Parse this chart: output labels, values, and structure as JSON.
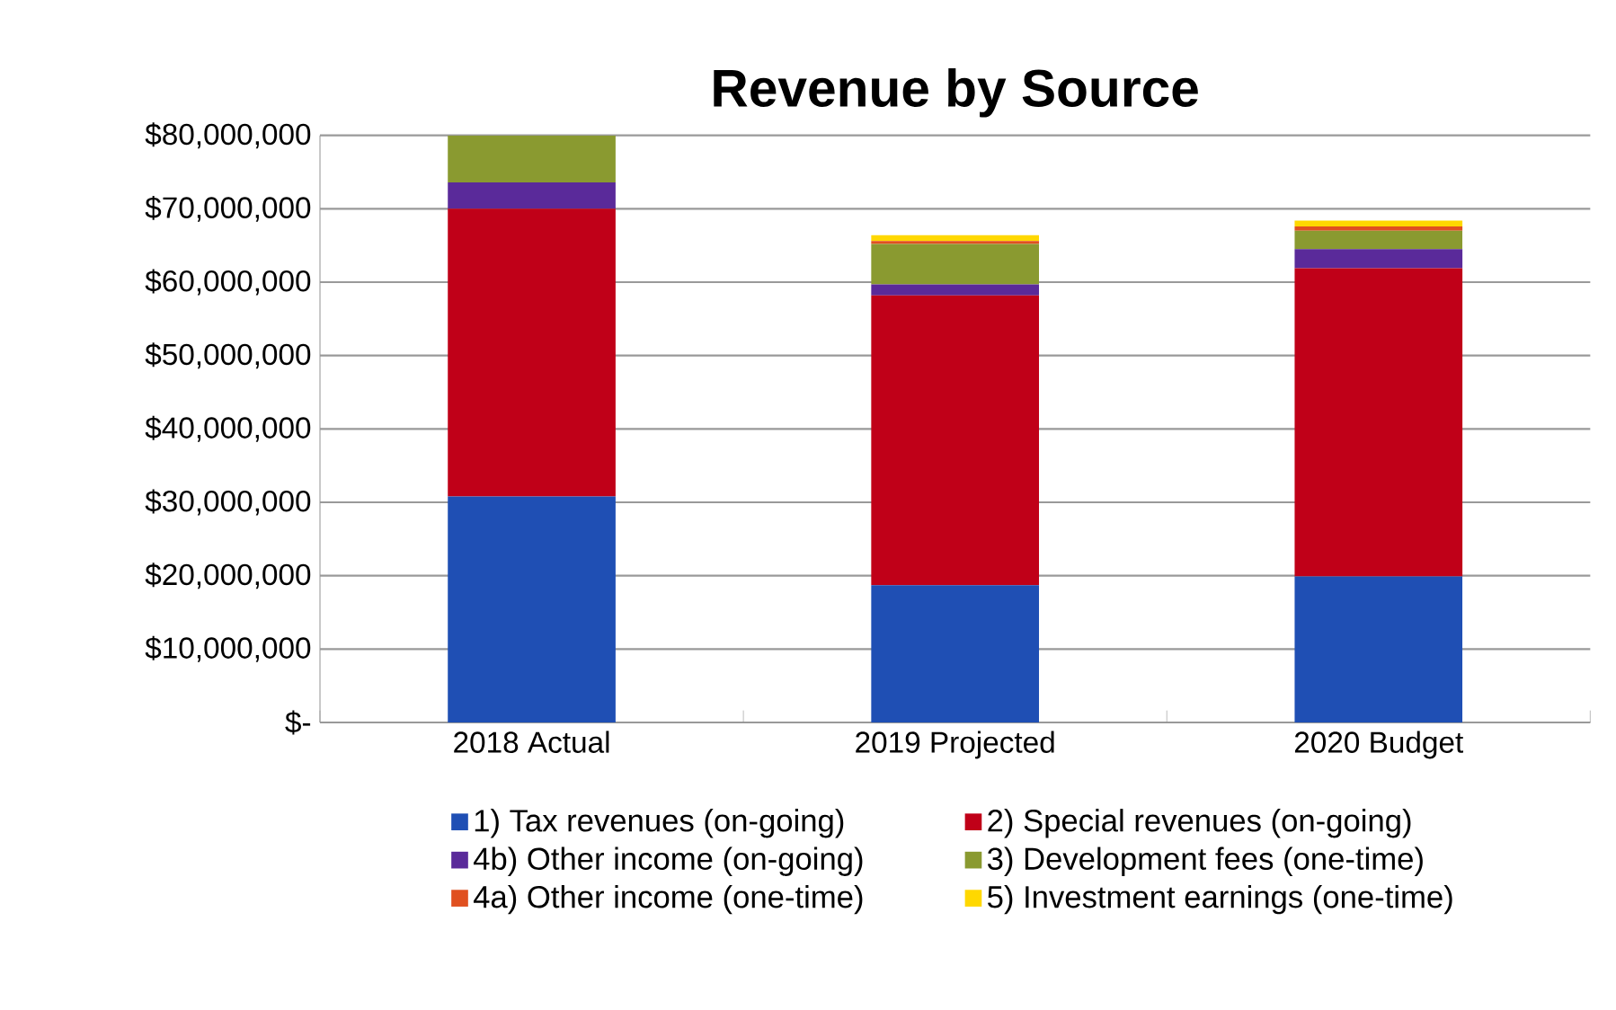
{
  "chart_data": {
    "type": "bar",
    "title": "Revenue by Source",
    "stacked": true,
    "categories": [
      "2018 Actual",
      "2019 Projected",
      "2020 Budget"
    ],
    "series": [
      {
        "name": "1) Tax revenues  (on-going)",
        "color": "#1f4fb4",
        "values": [
          30800000,
          18700000,
          19900000
        ]
      },
      {
        "name": "2) Special revenues (on-going)",
        "color": "#c00018",
        "values": [
          39200000,
          39500000,
          42000000
        ]
      },
      {
        "name": "4b) Other income (on-going)",
        "color": "#5a2a9a",
        "values": [
          3600000,
          1500000,
          2600000
        ]
      },
      {
        "name": "3) Development fees (one-time)",
        "color": "#8a9a30",
        "values": [
          6400000,
          5500000,
          2500000
        ]
      },
      {
        "name": "4a) Other income (one-time)",
        "color": "#e05020",
        "values": [
          0,
          400000,
          600000
        ]
      },
      {
        "name": "5) Investment earnings (one-time)",
        "color": "#ffd800",
        "values": [
          0,
          800000,
          800000
        ]
      }
    ],
    "ylim": [
      0,
      80000000
    ],
    "yticks": [
      {
        "value": 0,
        "label": "$-"
      },
      {
        "value": 10000000,
        "label": "$10,000,000"
      },
      {
        "value": 20000000,
        "label": "$20,000,000"
      },
      {
        "value": 30000000,
        "label": "$30,000,000"
      },
      {
        "value": 40000000,
        "label": "$40,000,000"
      },
      {
        "value": 50000000,
        "label": "$50,000,000"
      },
      {
        "value": 60000000,
        "label": "$60,000,000"
      },
      {
        "value": 70000000,
        "label": "$70,000,000"
      },
      {
        "value": 80000000,
        "label": "$80,000,000"
      }
    ],
    "grid": "y",
    "legend": "bottom"
  }
}
